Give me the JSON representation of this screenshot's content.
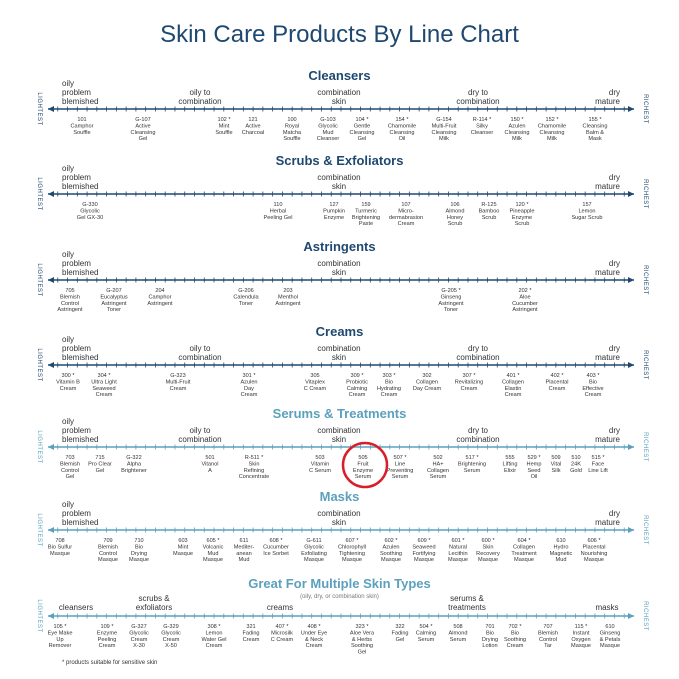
{
  "title": "Skin Care Products By Line Chart",
  "footnote": "* products suitable for sensitive skin",
  "colors": {
    "title": "#1f4870",
    "axis_dark": "#1f4870",
    "axis_light": "#5ba0bd",
    "sensitive_circle": "#d81e2a",
    "text": "#333333"
  },
  "axis_end_labels": {
    "left": "LIGHTEST",
    "right": "RICHEST"
  },
  "chart_data": {
    "type": "scale",
    "scale_labels": [
      {
        "key": "oily",
        "text": "oily\nproblem\nblemished"
      },
      {
        "key": "oily_combo",
        "text": "oily to\ncombination"
      },
      {
        "key": "combo",
        "text": "combination\nskin"
      },
      {
        "key": "dry_combo",
        "text": "dry to\ncombination"
      },
      {
        "key": "dry",
        "text": "dry\nmature"
      }
    ],
    "sections": [
      {
        "title": "Cleansers",
        "scale": [
          "oily",
          "oily_combo",
          "combo",
          "dry_combo",
          "dry"
        ],
        "products": [
          "101\nCamphor\nSouffle",
          "G-107\nActive\nCleansing\nGel",
          "102 *\nMint\nSouffle",
          "121\nActive\nCharcoal",
          "100\nRoyal\nMatcha\nSouffle",
          "G-103\nGlycolic\nMud\nCleanser",
          "104 *\nGentle\nCleansing\nGel",
          "154 *\nChamomile\nCleansing\nOil",
          "G-154\nMulti-Fruit\nCleansing\nMilk",
          "R-114 *\nSilky\nCleanser",
          "150 *\nAzulen\nCleansing\nMilk",
          "152 *\nChamomile\nCleansing\nMilk",
          "155 *\nCleansing\nBalm &\nMask"
        ]
      },
      {
        "title": "Scrubs & Exfoliators",
        "scale": [
          "oily",
          "combo",
          "dry"
        ],
        "products": [
          "G-330\nGlycolic\nGel GX-30",
          "110\nHerbal\nPeeling Gel",
          "127\nPumpkin\nEnzyme",
          "159\nTurmeric\nBrightening\nPaste",
          "107\nMicro-\ndermabrasion\nCream",
          "106\nAlmond\nHoney\nScrub",
          "R-125\nBamboo\nScrub",
          "120 *\nPineapple\nEnzyme\nScrub",
          "157\nLemon\nSugar Scrub"
        ]
      },
      {
        "title": "Astringents",
        "scale": [
          "oily",
          "combo",
          "dry"
        ],
        "products": [
          "705\nBlemish\nControl\nAstringent",
          "G-207\nEucalyptus\nAstringent\nToner",
          "204\nCamphor\nAstringent",
          "G-206\nCalendula\nToner",
          "203\nMenthol\nAstringent",
          "G-205 *\nGinseng\nAstringent\nToner",
          "202 *\nAloe\nCucumber\nAstringent"
        ]
      },
      {
        "title": "Creams",
        "scale": [
          "oily",
          "oily_combo",
          "combo",
          "dry_combo",
          "dry"
        ],
        "products": [
          "300 *\nVitamin B\nCream",
          "304 *\nUltra Light\nSeaweed\nCream",
          "G-323\nMulti-Fruit\nCream",
          "301 *\nAzulen\nDay\nCream",
          "305\nVitaplex\nC Cream",
          "309 *\nProbiotic\nCalming\nCream",
          "303 *\nBio\nHydrating\nCream",
          "302\nCollagen\nDay Cream",
          "307 *\nRevitalizing\nCream",
          "401 *\nCollagen\nElastin\nCream",
          "402 *\nPlacental\nCream",
          "403 *\nBio\nEffective\nCream"
        ]
      },
      {
        "title": "Serums & Treatments",
        "scale": [
          "oily",
          "oily_combo",
          "combo",
          "dry_combo",
          "dry"
        ],
        "products": [
          "703\nBlemish\nControl\nGel",
          "715\nPro Clear\nGel",
          "G-322\nAlpha\nBrightener",
          "501\nVitanol\nA",
          "R-511 *\nSkin\nRefining\nConcentrate",
          "503\nVitamin\nC Serum",
          "505\nFruit\nEnzyme\nSerum",
          "507 *\nLine\nPreventing\nSerum",
          "502\nHA+\nCollagen\nSerum",
          "517 *\nBrightening\nSerum",
          "555\nLifting\nElixir",
          "529 *\nHemp\nSeed\nOil",
          "509\nVital\nSilk",
          "510\n24K\nGold",
          "515 *\nFace\nLine Lift"
        ]
      },
      {
        "title": "Masks",
        "scale": [
          "oily",
          "combo",
          "dry"
        ],
        "products": [
          "708\nBio Sulfur\nMasque",
          "709\nBlemish\nControl\nMasque",
          "710\nBio\nDrying\nMasque",
          "603\nMint\nMasque",
          "605 *\nVolcanic\nMud\nMasque",
          "611\nMediter-\nanean\nMud",
          "608 *\nCucumber\nIce Sorbet",
          "G-611\nGlycolic\nExfoliating\nMasque",
          "607 *\nChlorophyll\nTightening\nMasque",
          "602 *\nAzulen\nSoothing\nMasque",
          "609 *\nSeaweed\nFortifying\nMasque",
          "601 *\nNatural\nLecithin\nMasque",
          "600 *\nSkin\nRecovery\nMasque",
          "604 *\nCollagen\nTreatment\nMasque",
          "610\nHydro\nMagnetic\nMud",
          "606 *\nPlacental\nNourishing\nMasque"
        ]
      }
    ],
    "multi_section": {
      "title": "Great For Multiple Skin Types",
      "subtitle": "(oily, dry, or combination skin)",
      "categories": [
        "cleansers",
        "scrubs &\nexfoliators",
        "creams",
        "serums &\ntreatments",
        "masks"
      ],
      "products": [
        "105 *\nEye Make\nUp\nRemover",
        "109 *\nEnzyme\nPeeling\nCream",
        "G-327\nGlycolic\nCream\nX-30",
        "G-329\nGlycolic\nCream\nX-50",
        "308 *\nLemon\nWater Gel\nCream",
        "321\nFading\nCream",
        "407 *\nMicrosilk\nC Cream",
        "408 *\nUnder Eye\n& Neck\nCream",
        "323 *\nAloe Vera\n& Herbs\nSoothing\nGel",
        "322\nFading\nGel",
        "504 *\nCalming\nSerum",
        "508\nAlmond\nSerum",
        "701\nBio\nDrying\nLotion",
        "702 *\nBio\nSoothing\nCream",
        "707\nBlemish\nControl\nTar",
        "115 *\nInstant\nOxygen\nMasque",
        "610\nGinseng\n& Petals\nMasque"
      ]
    },
    "highlighted_product": "505\nFruit\nEnzyme\nSerum"
  }
}
